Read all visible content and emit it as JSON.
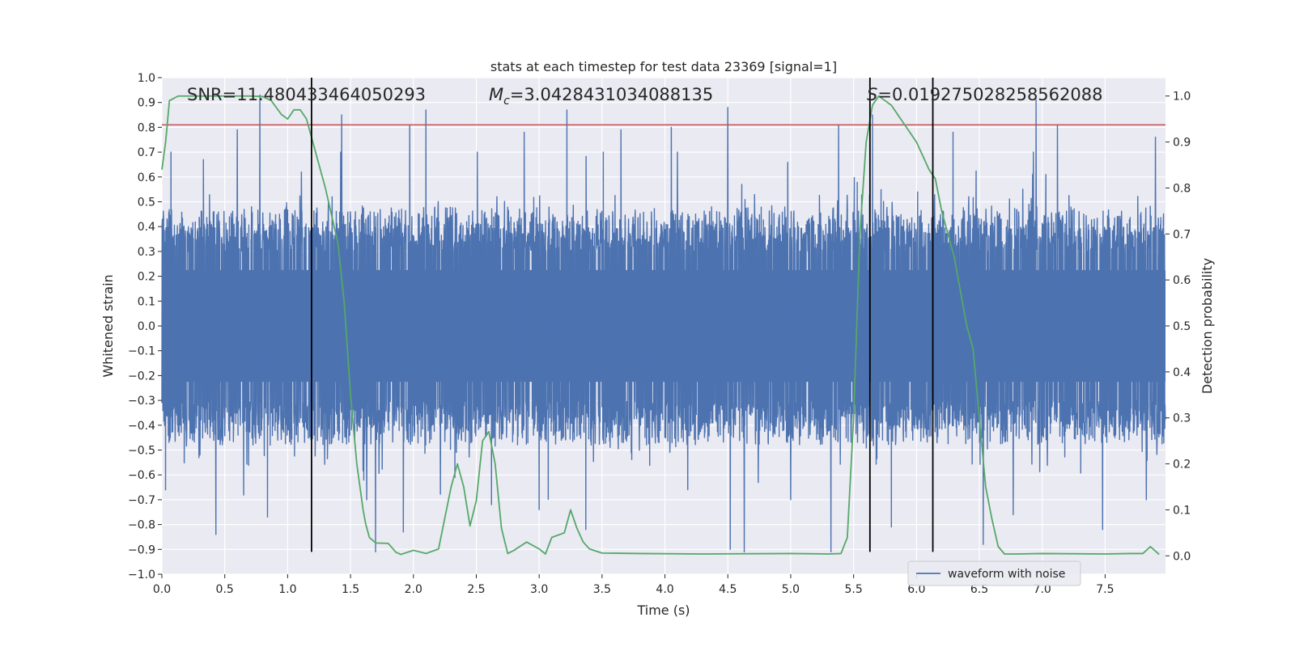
{
  "chart_data": {
    "type": "line",
    "title": "stats at each timestep for test data 23369 [signal=1]",
    "xlabel": "Time (s)",
    "ylabel": "Whitened strain",
    "y2label": "Detection probability",
    "xlim": [
      0.0,
      7.98
    ],
    "ylim": [
      -1.0,
      1.0
    ],
    "y2lim": [
      -0.04,
      1.04
    ],
    "xticks": [
      0.0,
      0.5,
      1.0,
      1.5,
      2.0,
      2.5,
      3.0,
      3.5,
      4.0,
      4.5,
      5.0,
      5.5,
      6.0,
      6.5,
      7.0,
      7.5
    ],
    "xtick_labels": [
      "0.0",
      "0.5",
      "1.0",
      "1.5",
      "2.0",
      "2.5",
      "3.0",
      "3.5",
      "4.0",
      "4.5",
      "5.0",
      "5.5",
      "6.0",
      "6.5",
      "7.0",
      "7.5"
    ],
    "yticks": [
      -1.0,
      -0.9,
      -0.8,
      -0.7,
      -0.6,
      -0.5,
      -0.4,
      -0.3,
      -0.2,
      -0.1,
      0.0,
      0.1,
      0.2,
      0.3,
      0.4,
      0.5,
      0.6,
      0.7,
      0.8,
      0.9,
      1.0
    ],
    "ytick_labels": [
      "−1.0",
      "−0.9",
      "−0.8",
      "−0.7",
      "−0.6",
      "−0.5",
      "−0.4",
      "−0.3",
      "−0.2",
      "−0.1",
      "0.0",
      "0.1",
      "0.2",
      "0.3",
      "0.4",
      "0.5",
      "0.6",
      "0.7",
      "0.8",
      "0.9",
      "1.0"
    ],
    "y2ticks": [
      0.0,
      0.1,
      0.2,
      0.3,
      0.4,
      0.5,
      0.6,
      0.7,
      0.8,
      0.9,
      1.0
    ],
    "y2tick_labels": [
      "0.0",
      "0.1",
      "0.2",
      "0.3",
      "0.4",
      "0.5",
      "0.6",
      "0.7",
      "0.8",
      "0.9",
      "1.0"
    ],
    "grid": true,
    "legend": {
      "position": "lower-right",
      "entries": [
        "waveform with noise"
      ]
    },
    "annotations": {
      "snr": "SNR=11.480433464050293",
      "mc_symbol": "M",
      "mc_subscript": "c",
      "mc_value": "=3.0428431034088135",
      "s_symbol": "S",
      "s_value": "=0.019275028258562088"
    },
    "series": [
      {
        "name": "waveform with noise",
        "color": "#4c72b0",
        "kind": "noise-band",
        "sample_rate_hz": 512,
        "core_amplitude": 0.5,
        "peaks": [
          {
            "x": 0.03,
            "y": -0.66
          },
          {
            "x": 0.33,
            "y": 0.67
          },
          {
            "x": 0.43,
            "y": -0.84
          },
          {
            "x": 0.6,
            "y": 0.79
          },
          {
            "x": 0.78,
            "y": 0.93
          },
          {
            "x": 0.84,
            "y": -0.77
          },
          {
            "x": 1.11,
            "y": 0.62
          },
          {
            "x": 1.43,
            "y": 0.85
          },
          {
            "x": 1.7,
            "y": -0.91
          },
          {
            "x": 1.92,
            "y": -0.83
          },
          {
            "x": 1.97,
            "y": 0.81
          },
          {
            "x": 2.1,
            "y": 0.87
          },
          {
            "x": 2.33,
            "y": -0.61
          },
          {
            "x": 2.62,
            "y": -0.72
          },
          {
            "x": 2.88,
            "y": 0.78
          },
          {
            "x": 3.0,
            "y": -0.74
          },
          {
            "x": 3.22,
            "y": 0.87
          },
          {
            "x": 3.37,
            "y": -0.82
          },
          {
            "x": 3.65,
            "y": 0.79
          },
          {
            "x": 4.05,
            "y": 0.8
          },
          {
            "x": 4.5,
            "y": 0.88
          },
          {
            "x": 4.52,
            "y": -0.9
          },
          {
            "x": 4.63,
            "y": -0.91
          },
          {
            "x": 5.0,
            "y": -0.7
          },
          {
            "x": 5.32,
            "y": -0.91
          },
          {
            "x": 5.38,
            "y": 0.81
          },
          {
            "x": 5.65,
            "y": 0.85
          },
          {
            "x": 5.8,
            "y": -0.81
          },
          {
            "x": 6.29,
            "y": 0.78
          },
          {
            "x": 6.53,
            "y": -0.88
          },
          {
            "x": 6.77,
            "y": -0.76
          },
          {
            "x": 6.95,
            "y": 0.91
          },
          {
            "x": 7.12,
            "y": 0.81
          },
          {
            "x": 7.48,
            "y": -0.82
          },
          {
            "x": 7.9,
            "y": 0.76
          }
        ]
      },
      {
        "name": "",
        "color": "#55a868",
        "axis": "right",
        "kind": "line",
        "x": [
          0.0,
          0.03,
          0.06,
          0.13,
          0.3,
          0.5,
          0.7,
          0.8,
          0.87,
          0.95,
          1.0,
          1.05,
          1.1,
          1.15,
          1.2,
          1.3,
          1.4,
          1.45,
          1.5,
          1.55,
          1.6,
          1.62,
          1.65,
          1.7,
          1.8,
          1.86,
          1.9,
          2.0,
          2.1,
          2.2,
          2.3,
          2.35,
          2.4,
          2.45,
          2.5,
          2.55,
          2.6,
          2.65,
          2.7,
          2.75,
          2.8,
          2.9,
          3.0,
          3.05,
          3.1,
          3.2,
          3.25,
          3.3,
          3.35,
          3.4,
          3.5,
          3.8,
          4.3,
          5.0,
          5.3,
          5.4,
          5.45,
          5.5,
          5.55,
          5.6,
          5.65,
          5.7,
          5.75,
          5.8,
          5.85,
          5.9,
          6.0,
          6.1,
          6.15,
          6.2,
          6.25,
          6.3,
          6.4,
          6.45,
          6.5,
          6.55,
          6.6,
          6.65,
          6.7,
          6.8,
          7.0,
          7.5,
          7.7,
          7.8,
          7.86,
          7.93
        ],
        "y": [
          0.84,
          0.9,
          0.99,
          1.0,
          1.0,
          1.0,
          1.0,
          0.999,
          0.99,
          0.96,
          0.95,
          0.97,
          0.97,
          0.95,
          0.9,
          0.8,
          0.68,
          0.55,
          0.35,
          0.2,
          0.1,
          0.07,
          0.04,
          0.028,
          0.027,
          0.008,
          0.003,
          0.012,
          0.005,
          0.015,
          0.15,
          0.2,
          0.15,
          0.065,
          0.12,
          0.25,
          0.27,
          0.2,
          0.06,
          0.005,
          0.012,
          0.03,
          0.015,
          0.004,
          0.04,
          0.05,
          0.1,
          0.06,
          0.03,
          0.015,
          0.006,
          0.005,
          0.004,
          0.005,
          0.004,
          0.005,
          0.04,
          0.3,
          0.7,
          0.9,
          0.98,
          1.0,
          0.99,
          0.98,
          0.96,
          0.94,
          0.9,
          0.84,
          0.82,
          0.75,
          0.7,
          0.65,
          0.5,
          0.45,
          0.3,
          0.15,
          0.08,
          0.02,
          0.004,
          0.004,
          0.005,
          0.004,
          0.005,
          0.005,
          0.02,
          0.003
        ]
      },
      {
        "name": "",
        "color": "#c44e52",
        "kind": "hline",
        "y": 0.81
      }
    ],
    "vlines": {
      "color": "#000000",
      "x": [
        1.19,
        5.63,
        6.13
      ],
      "y_from": -0.91,
      "y_to": 1.0
    }
  }
}
